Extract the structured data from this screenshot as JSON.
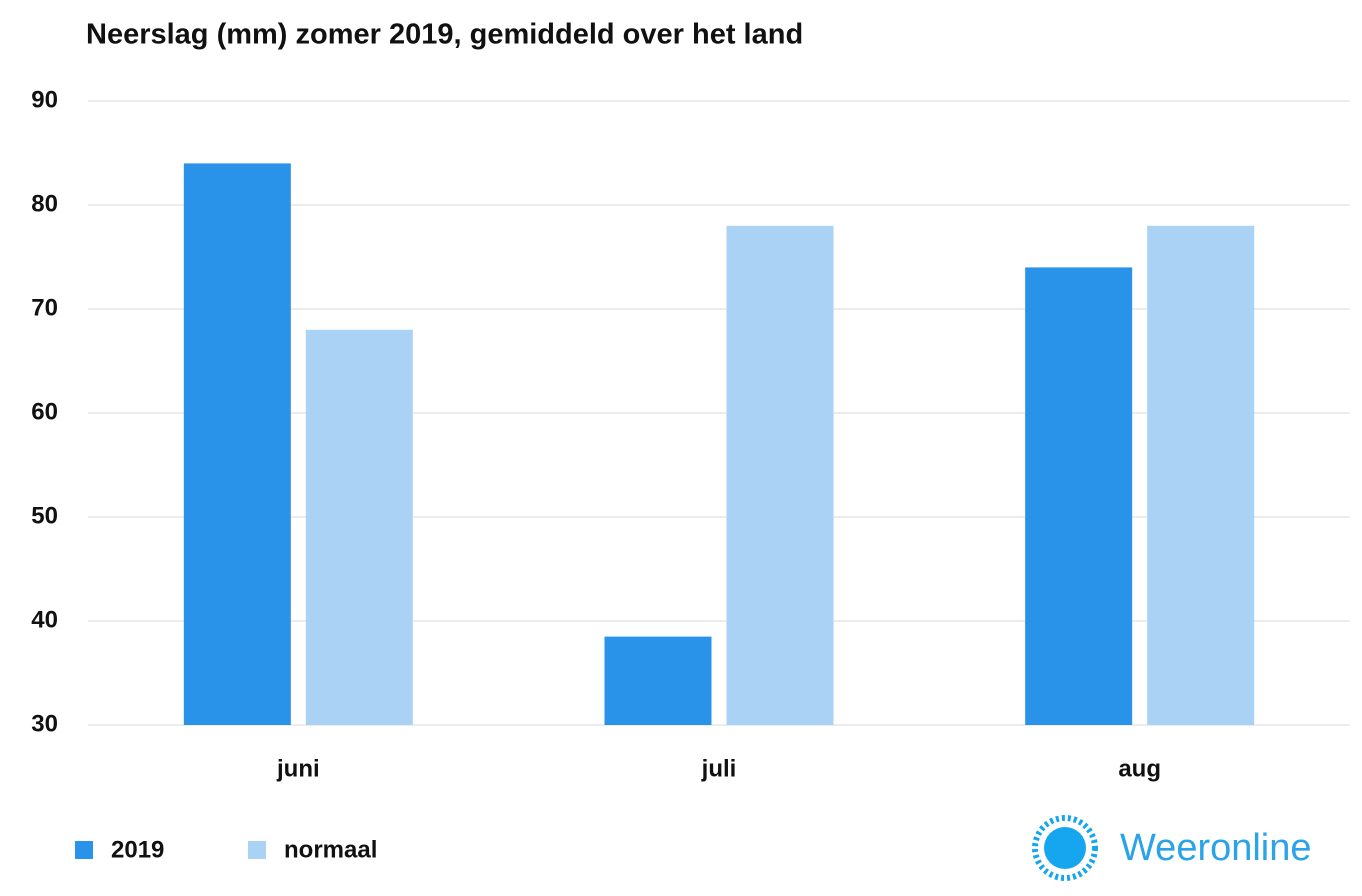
{
  "chart_data": {
    "type": "bar",
    "title": "Neerslag (mm) zomer 2019, gemiddeld over het land",
    "categories": [
      "juni",
      "juli",
      "aug"
    ],
    "series": [
      {
        "name": "2019",
        "color": "#2893e8",
        "values": [
          84,
          38.5,
          74
        ]
      },
      {
        "name": "normaal",
        "color": "#a9d2f5",
        "values": [
          68,
          78,
          78
        ]
      }
    ],
    "ylim": [
      30,
      90
    ],
    "yticks": [
      30,
      40,
      50,
      60,
      70,
      80,
      90
    ],
    "grid": true,
    "source": "Weeronline"
  }
}
